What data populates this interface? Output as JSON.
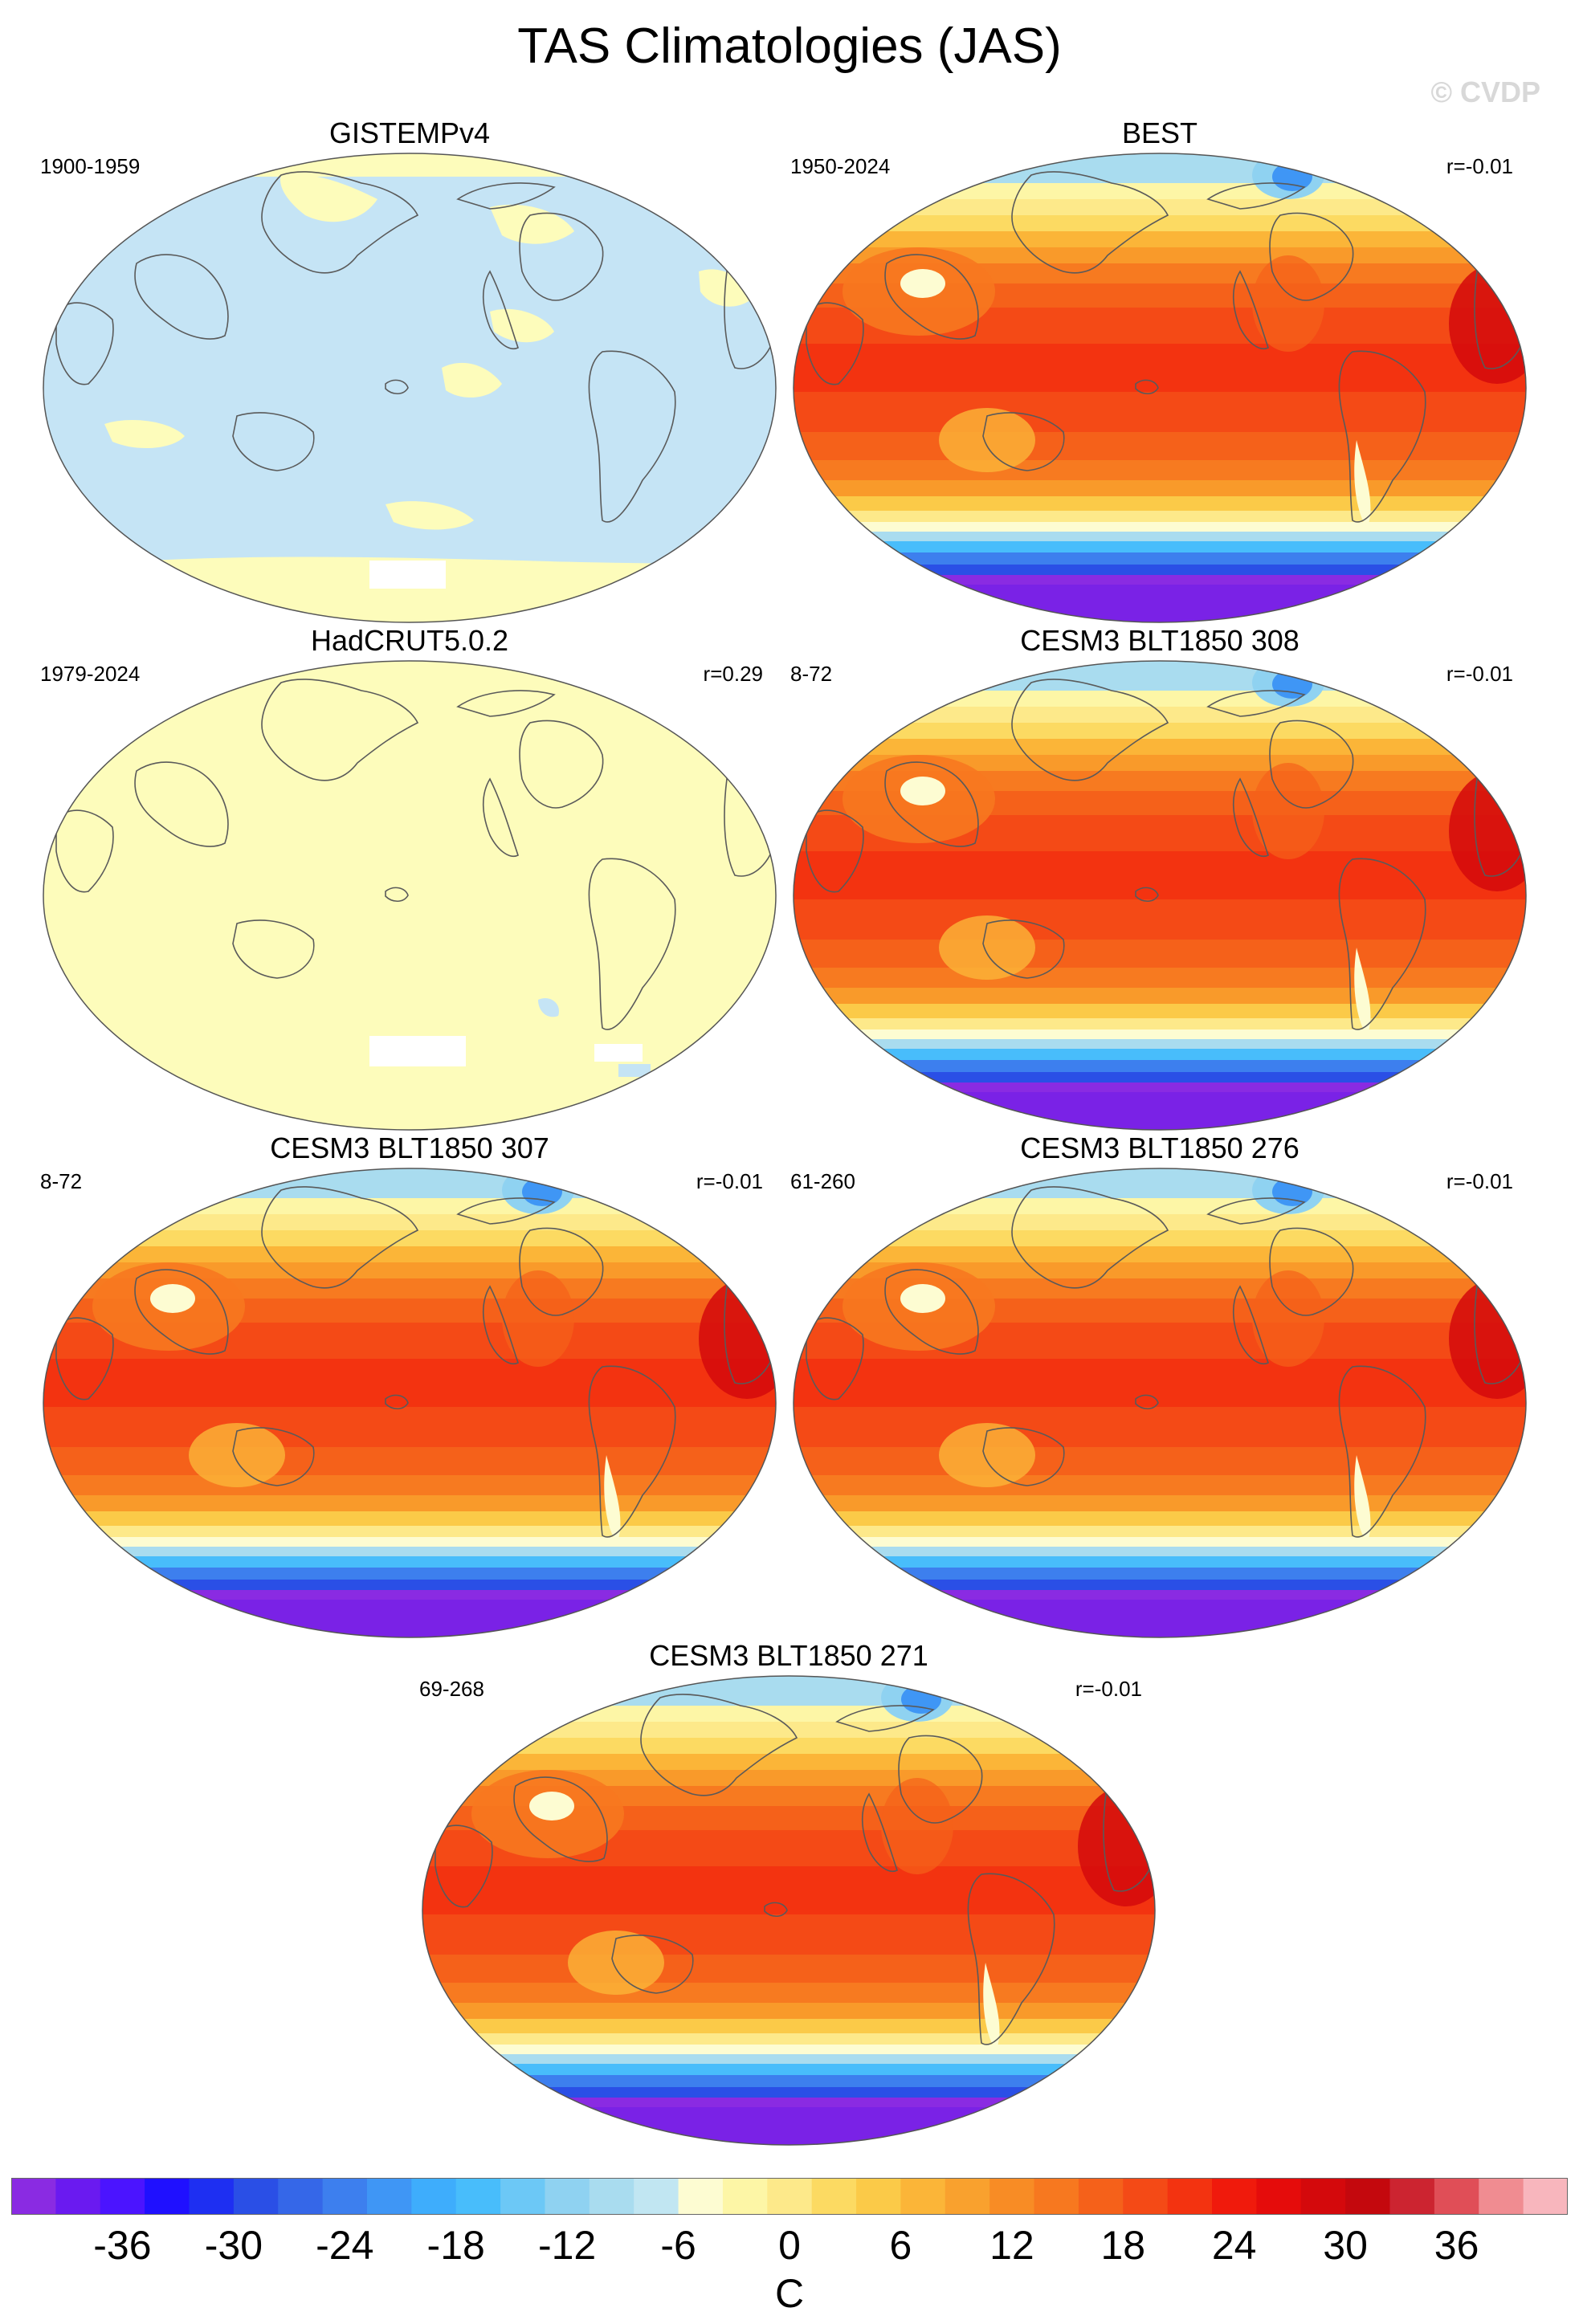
{
  "title": "TAS Climatologies (JAS)",
  "watermark": "© CVDP",
  "panels": [
    {
      "title": "GISTEMPv4",
      "period": "1900-1959",
      "corr": "",
      "style": "obs-mixed"
    },
    {
      "title": "BEST",
      "period": "1950-2024",
      "corr": "r=-0.01",
      "style": "model"
    },
    {
      "title": "HadCRUT5.0.2",
      "period": "1979-2024",
      "corr": "r=0.29",
      "style": "obs-flat"
    },
    {
      "title": "CESM3 BLT1850 308",
      "period": "8-72",
      "corr": "r=-0.01",
      "style": "model"
    },
    {
      "title": "CESM3 BLT1850 307",
      "period": "8-72",
      "corr": "r=-0.01",
      "style": "model"
    },
    {
      "title": "CESM3 BLT1850 276",
      "period": "61-260",
      "corr": "r=-0.01",
      "style": "model"
    },
    {
      "title": "CESM3 BLT1850 271",
      "period": "69-268",
      "corr": "r=-0.01",
      "style": "model"
    }
  ],
  "colorbar": {
    "unit": "C",
    "ticks": [
      "-36",
      "-30",
      "-24",
      "-18",
      "-12",
      "-6",
      "0",
      "6",
      "12",
      "18",
      "24",
      "30",
      "36"
    ],
    "tick_values": [
      -36,
      -30,
      -24,
      -18,
      -12,
      -6,
      0,
      6,
      12,
      18,
      24,
      30,
      36
    ],
    "min": -42,
    "max": 42,
    "step": 2,
    "colors": [
      "#8a2be2",
      "#6a1af0",
      "#4b14ff",
      "#1f10ff",
      "#1e2ff2",
      "#2a4fe6",
      "#3567e8",
      "#3d7fee",
      "#3f96f5",
      "#3eadfc",
      "#48bdfb",
      "#6cc8f6",
      "#8fd2f1",
      "#a9dcef",
      "#c1e6f2",
      "#fdfcd2",
      "#fdf6a6",
      "#fde98a",
      "#fcda62",
      "#fbca48",
      "#fbb538",
      "#f9a12e",
      "#f88c25",
      "#f7781f",
      "#f5611a",
      "#f44a16",
      "#f33310",
      "#f01a0c",
      "#e50c0b",
      "#d4090c",
      "#c4080d",
      "#cc2430",
      "#e04e57",
      "#f08c91",
      "#f8b6bd"
    ]
  },
  "map_colors": {
    "ocean_light": "#c5e4f5",
    "land_yellow": "#fdfcbb",
    "missing": "#ffffff",
    "coast": "#5a5a5a"
  }
}
